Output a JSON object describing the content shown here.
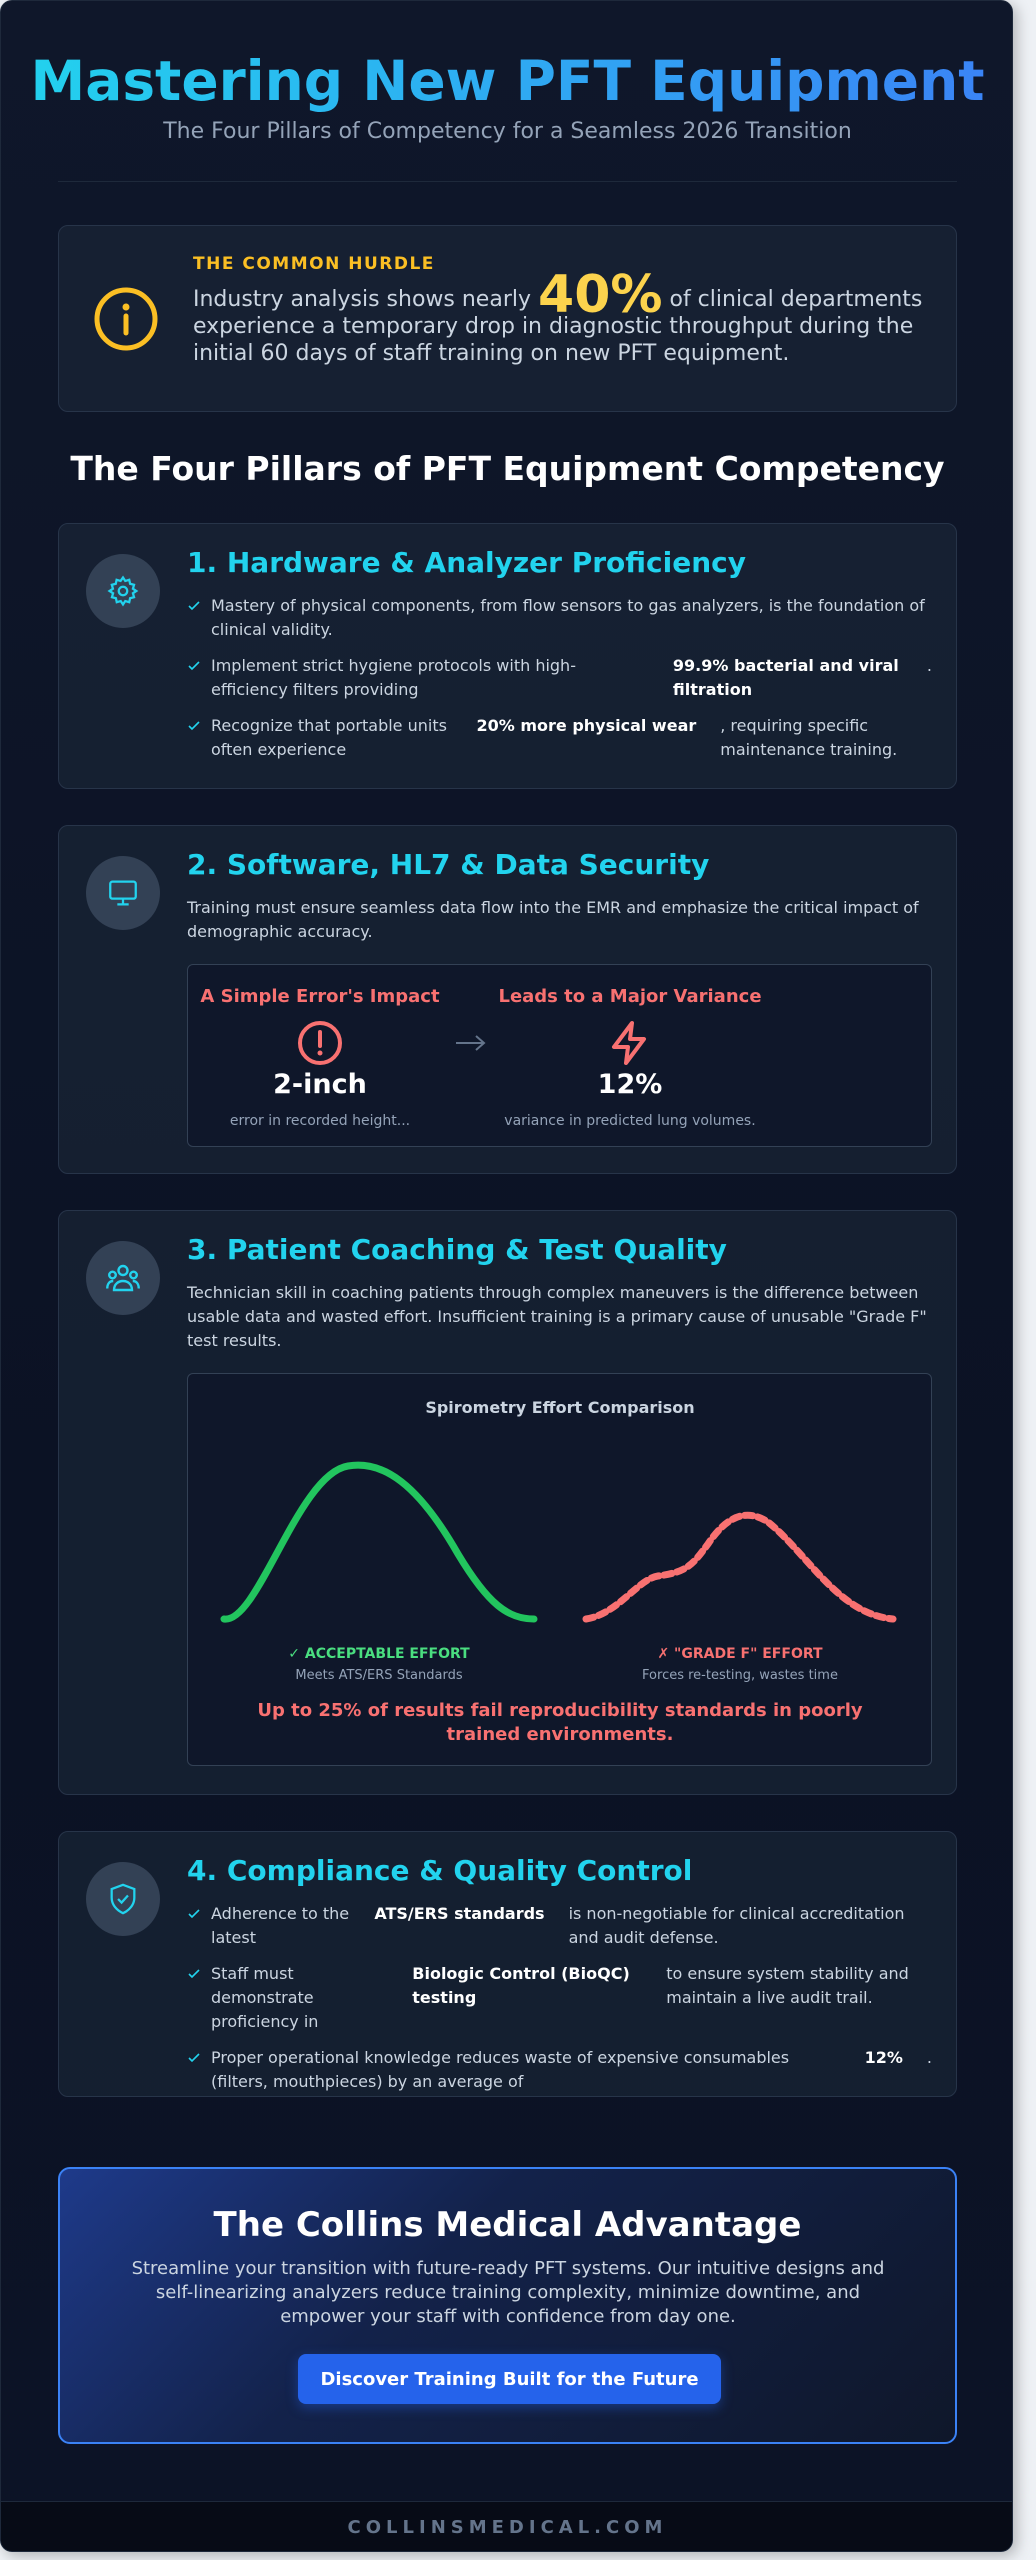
{
  "header": {
    "title": "Mastering New PFT Equipment",
    "subtitle": "The Four Pillars of Competency for a Seamless 2026 Transition"
  },
  "hurdle": {
    "label": "THE COMMON HURDLE",
    "before": "Industry analysis shows nearly",
    "stat": "40%",
    "after": "of clinical departments experience a temporary drop in diagnostic throughput during the initial 60 days of staff training on new PFT equipment."
  },
  "pillars_heading": "The Four Pillars of PFT Equipment Competency",
  "pillars": [
    {
      "title": "1. Hardware & Analyzer Proficiency",
      "bullets": [
        {
          "text": "Mastery of physical components, from flow sensors to gas analyzers, is the foundation of clinical validity."
        },
        {
          "text": "Implement strict hygiene protocols with high-efficiency filters providing",
          "strong": "99.9% bacterial and viral filtration",
          "after": "."
        },
        {
          "text": "Recognize that portable units often experience",
          "strong": "20% more physical wear",
          "after": ", requiring specific maintenance training."
        }
      ]
    },
    {
      "title": "2. Software, HL7 & Data Security",
      "description": "Training must ensure seamless data flow into the EMR and emphasize the critical impact of demographic accuracy.",
      "impact": {
        "left_heading": "A Simple Error's Impact",
        "left_value": "2-inch",
        "left_caption": "error in recorded height...",
        "right_heading": "Leads to a Major Variance",
        "right_value": "12%",
        "right_caption": "variance in predicted lung volumes."
      }
    },
    {
      "title": "3. Patient Coaching & Test Quality",
      "description": "Technician skill in coaching patients through complex maneuvers is the difference between usable data and wasted effort. Insufficient training is a primary cause of unusable \"Grade F\" test results.",
      "comparison": {
        "title": "Spirometry Effort Comparison",
        "good_label": "✓ ACCEPTABLE EFFORT",
        "good_caption": "Meets ATS/ERS Standards",
        "bad_label": "✗ \"GRADE F\" EFFORT",
        "bad_caption": "Forces re-testing, wastes time",
        "note": "Up to 25% of results fail reproducibility standards in poorly trained environments."
      }
    },
    {
      "title": "4. Compliance & Quality Control",
      "bullets": [
        {
          "text": "Adherence to the latest",
          "strong": "ATS/ERS standards",
          "after": "is non-negotiable for clinical accreditation and audit defense."
        },
        {
          "text": "Staff must demonstrate proficiency in",
          "strong": "Biologic Control (BioQC) testing",
          "after": "to ensure system stability and maintain a live audit trail."
        },
        {
          "text": "Proper operational knowledge reduces waste of expensive consumables (filters, mouthpieces) by an average of",
          "strong": "12%",
          "after": "."
        }
      ]
    }
  ],
  "cta": {
    "title": "The Collins Medical Advantage",
    "text": "Streamline your transition with future-ready PFT systems. Our intuitive designs and self-linearizing analyzers reduce training complexity, minimize downtime, and empower your staff with confidence from day one.",
    "button": "Discover Training Built for the Future"
  },
  "footer": "COLLINSMEDICAL.COM"
}
